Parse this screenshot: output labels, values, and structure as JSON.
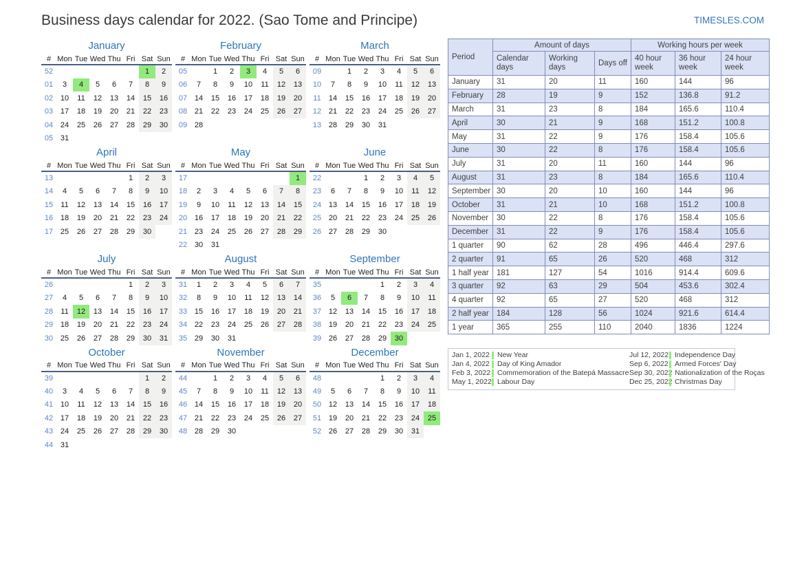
{
  "page": {
    "title": "Business days calendar for 2022. (Sao Tome and Principe)",
    "site_link": "TIMESLES.COM"
  },
  "colors": {
    "accent_blue": "#2e75b5",
    "week_number_blue": "#5b87c5",
    "holiday_green": "#92ea7e",
    "weekend_gray": "#f1f1f0",
    "table_header_bg": "#dbe2f6",
    "table_border": "#808cb0",
    "calendar_header_rule": "#4a5d85"
  },
  "calendar": {
    "day_headers": [
      "#",
      "Mon",
      "Tue",
      "Wed",
      "Thu",
      "Fri",
      "Sat",
      "Sun"
    ],
    "months": [
      {
        "name": "January",
        "holidays": [
          "1",
          "4"
        ],
        "weeks": [
          [
            "52",
            "",
            "",
            "",
            "",
            "",
            "1",
            "2"
          ],
          [
            "01",
            "3",
            "4",
            "5",
            "6",
            "7",
            "8",
            "9"
          ],
          [
            "02",
            "10",
            "11",
            "12",
            "13",
            "14",
            "15",
            "16"
          ],
          [
            "03",
            "17",
            "18",
            "19",
            "20",
            "21",
            "22",
            "23"
          ],
          [
            "04",
            "24",
            "25",
            "26",
            "27",
            "28",
            "29",
            "30"
          ],
          [
            "05",
            "31",
            "",
            "",
            "",
            "",
            "",
            ""
          ]
        ]
      },
      {
        "name": "February",
        "holidays": [
          "3"
        ],
        "weeks": [
          [
            "05",
            "",
            "1",
            "2",
            "3",
            "4",
            "5",
            "6"
          ],
          [
            "06",
            "7",
            "8",
            "9",
            "10",
            "11",
            "12",
            "13"
          ],
          [
            "07",
            "14",
            "15",
            "16",
            "17",
            "18",
            "19",
            "20"
          ],
          [
            "08",
            "21",
            "22",
            "23",
            "24",
            "25",
            "26",
            "27"
          ],
          [
            "09",
            "28",
            "",
            "",
            "",
            "",
            "",
            ""
          ]
        ]
      },
      {
        "name": "March",
        "holidays": [],
        "weeks": [
          [
            "09",
            "",
            "1",
            "2",
            "3",
            "4",
            "5",
            "6"
          ],
          [
            "10",
            "7",
            "8",
            "9",
            "10",
            "11",
            "12",
            "13"
          ],
          [
            "11",
            "14",
            "15",
            "16",
            "17",
            "18",
            "19",
            "20"
          ],
          [
            "12",
            "21",
            "22",
            "23",
            "24",
            "25",
            "26",
            "27"
          ],
          [
            "13",
            "28",
            "29",
            "30",
            "31",
            "",
            "",
            ""
          ]
        ]
      },
      {
        "name": "April",
        "holidays": [],
        "weeks": [
          [
            "13",
            "",
            "",
            "",
            "",
            "1",
            "2",
            "3"
          ],
          [
            "14",
            "4",
            "5",
            "6",
            "7",
            "8",
            "9",
            "10"
          ],
          [
            "15",
            "11",
            "12",
            "13",
            "14",
            "15",
            "16",
            "17"
          ],
          [
            "16",
            "18",
            "19",
            "20",
            "21",
            "22",
            "23",
            "24"
          ],
          [
            "17",
            "25",
            "26",
            "27",
            "28",
            "29",
            "30",
            ""
          ]
        ]
      },
      {
        "name": "May",
        "holidays": [
          "1"
        ],
        "weeks": [
          [
            "17",
            "",
            "",
            "",
            "",
            "",
            "",
            "1"
          ],
          [
            "18",
            "2",
            "3",
            "4",
            "5",
            "6",
            "7",
            "8"
          ],
          [
            "19",
            "9",
            "10",
            "11",
            "12",
            "13",
            "14",
            "15"
          ],
          [
            "20",
            "16",
            "17",
            "18",
            "19",
            "20",
            "21",
            "22"
          ],
          [
            "21",
            "23",
            "24",
            "25",
            "26",
            "27",
            "28",
            "29"
          ],
          [
            "22",
            "30",
            "31",
            "",
            "",
            "",
            "",
            ""
          ]
        ]
      },
      {
        "name": "June",
        "holidays": [],
        "weeks": [
          [
            "22",
            "",
            "",
            "1",
            "2",
            "3",
            "4",
            "5"
          ],
          [
            "23",
            "6",
            "7",
            "8",
            "9",
            "10",
            "11",
            "12"
          ],
          [
            "24",
            "13",
            "14",
            "15",
            "16",
            "17",
            "18",
            "19"
          ],
          [
            "25",
            "20",
            "21",
            "22",
            "23",
            "24",
            "25",
            "26"
          ],
          [
            "26",
            "27",
            "28",
            "29",
            "30",
            "",
            "",
            ""
          ]
        ]
      },
      {
        "name": "July",
        "holidays": [
          "12"
        ],
        "weeks": [
          [
            "26",
            "",
            "",
            "",
            "",
            "1",
            "2",
            "3"
          ],
          [
            "27",
            "4",
            "5",
            "6",
            "7",
            "8",
            "9",
            "10"
          ],
          [
            "28",
            "11",
            "12",
            "13",
            "14",
            "15",
            "16",
            "17"
          ],
          [
            "29",
            "18",
            "19",
            "20",
            "21",
            "22",
            "23",
            "24"
          ],
          [
            "30",
            "25",
            "26",
            "27",
            "28",
            "29",
            "30",
            "31"
          ]
        ]
      },
      {
        "name": "August",
        "holidays": [],
        "weeks": [
          [
            "31",
            "1",
            "2",
            "3",
            "4",
            "5",
            "6",
            "7"
          ],
          [
            "32",
            "8",
            "9",
            "10",
            "11",
            "12",
            "13",
            "14"
          ],
          [
            "33",
            "15",
            "16",
            "17",
            "18",
            "19",
            "20",
            "21"
          ],
          [
            "34",
            "22",
            "23",
            "24",
            "25",
            "26",
            "27",
            "28"
          ],
          [
            "35",
            "29",
            "30",
            "31",
            "",
            "",
            "",
            ""
          ]
        ]
      },
      {
        "name": "September",
        "holidays": [
          "6",
          "30"
        ],
        "weeks": [
          [
            "35",
            "",
            "",
            "",
            "1",
            "2",
            "3",
            "4"
          ],
          [
            "36",
            "5",
            "6",
            "7",
            "8",
            "9",
            "10",
            "11"
          ],
          [
            "37",
            "12",
            "13",
            "14",
            "15",
            "16",
            "17",
            "18"
          ],
          [
            "38",
            "19",
            "20",
            "21",
            "22",
            "23",
            "24",
            "25"
          ],
          [
            "39",
            "26",
            "27",
            "28",
            "29",
            "30",
            "",
            ""
          ]
        ]
      },
      {
        "name": "October",
        "holidays": [],
        "weeks": [
          [
            "39",
            "",
            "",
            "",
            "",
            "",
            "1",
            "2"
          ],
          [
            "40",
            "3",
            "4",
            "5",
            "6",
            "7",
            "8",
            "9"
          ],
          [
            "41",
            "10",
            "11",
            "12",
            "13",
            "14",
            "15",
            "16"
          ],
          [
            "42",
            "17",
            "18",
            "19",
            "20",
            "21",
            "22",
            "23"
          ],
          [
            "43",
            "24",
            "25",
            "26",
            "27",
            "28",
            "29",
            "30"
          ],
          [
            "44",
            "31",
            "",
            "",
            "",
            "",
            "",
            ""
          ]
        ]
      },
      {
        "name": "November",
        "holidays": [],
        "weeks": [
          [
            "44",
            "",
            "1",
            "2",
            "3",
            "4",
            "5",
            "6"
          ],
          [
            "45",
            "7",
            "8",
            "9",
            "10",
            "11",
            "12",
            "13"
          ],
          [
            "46",
            "14",
            "15",
            "16",
            "17",
            "18",
            "19",
            "20"
          ],
          [
            "47",
            "21",
            "22",
            "23",
            "24",
            "25",
            "26",
            "27"
          ],
          [
            "48",
            "28",
            "29",
            "30",
            "",
            "",
            "",
            ""
          ]
        ]
      },
      {
        "name": "December",
        "holidays": [
          "25"
        ],
        "weeks": [
          [
            "48",
            "",
            "",
            "",
            "1",
            "2",
            "3",
            "4"
          ],
          [
            "49",
            "5",
            "6",
            "7",
            "8",
            "9",
            "10",
            "11"
          ],
          [
            "50",
            "12",
            "13",
            "14",
            "15",
            "16",
            "17",
            "18"
          ],
          [
            "51",
            "19",
            "20",
            "21",
            "22",
            "23",
            "24",
            "25"
          ],
          [
            "52",
            "26",
            "27",
            "28",
            "29",
            "30",
            "31",
            ""
          ]
        ]
      }
    ]
  },
  "table": {
    "period_label": "Period",
    "group_amount": "Amount of days",
    "group_hours": "Working hours per week",
    "columns": [
      "Calendar days",
      "Working days",
      "Days off",
      "40 hour week",
      "36 hour week",
      "24 hour week"
    ],
    "rows": [
      {
        "period": "January",
        "values": [
          "31",
          "20",
          "11",
          "160",
          "144",
          "96"
        ]
      },
      {
        "period": "February",
        "values": [
          "28",
          "19",
          "9",
          "152",
          "136.8",
          "91.2"
        ]
      },
      {
        "period": "March",
        "values": [
          "31",
          "23",
          "8",
          "184",
          "165.6",
          "110.4"
        ]
      },
      {
        "period": "April",
        "values": [
          "30",
          "21",
          "9",
          "168",
          "151.2",
          "100.8"
        ]
      },
      {
        "period": "May",
        "values": [
          "31",
          "22",
          "9",
          "176",
          "158.4",
          "105.6"
        ]
      },
      {
        "period": "June",
        "values": [
          "30",
          "22",
          "8",
          "176",
          "158.4",
          "105.6"
        ]
      },
      {
        "period": "July",
        "values": [
          "31",
          "20",
          "11",
          "160",
          "144",
          "96"
        ]
      },
      {
        "period": "August",
        "values": [
          "31",
          "23",
          "8",
          "184",
          "165.6",
          "110.4"
        ]
      },
      {
        "period": "September",
        "values": [
          "30",
          "20",
          "10",
          "160",
          "144",
          "96"
        ]
      },
      {
        "period": "October",
        "values": [
          "31",
          "21",
          "10",
          "168",
          "151.2",
          "100.8"
        ]
      },
      {
        "period": "November",
        "values": [
          "30",
          "22",
          "8",
          "176",
          "158.4",
          "105.6"
        ]
      },
      {
        "period": "December",
        "values": [
          "31",
          "22",
          "9",
          "176",
          "158.4",
          "105.6"
        ]
      },
      {
        "period": "1 quarter",
        "values": [
          "90",
          "62",
          "28",
          "496",
          "446.4",
          "297.6"
        ]
      },
      {
        "period": "2 quarter",
        "values": [
          "91",
          "65",
          "26",
          "520",
          "468",
          "312"
        ]
      },
      {
        "period": "1 half year",
        "values": [
          "181",
          "127",
          "54",
          "1016",
          "914.4",
          "609.6"
        ]
      },
      {
        "period": "3 quarter",
        "values": [
          "92",
          "63",
          "29",
          "504",
          "453.6",
          "302.4"
        ]
      },
      {
        "period": "4 quarter",
        "values": [
          "92",
          "65",
          "27",
          "520",
          "468",
          "312"
        ]
      },
      {
        "period": "2 half year",
        "values": [
          "184",
          "128",
          "56",
          "1024",
          "921.6",
          "614.4"
        ]
      },
      {
        "period": "1 year",
        "values": [
          "365",
          "255",
          "110",
          "2040",
          "1836",
          "1224"
        ]
      }
    ]
  },
  "holidays_box": {
    "left": [
      {
        "date": "Jan 1, 2022",
        "name": "New Year"
      },
      {
        "date": "Jan 4, 2022",
        "name": "Day of King Amador"
      },
      {
        "date": "Feb 3, 2022",
        "name": "Commemoration of the Batepá Massacre"
      },
      {
        "date": "May 1, 2022",
        "name": "Labour Day"
      }
    ],
    "right": [
      {
        "date": "Jul 12, 2022",
        "name": "Independence Day"
      },
      {
        "date": "Sep 6, 2022",
        "name": "Armed Forces' Day"
      },
      {
        "date": "Sep 30, 2022",
        "name": "Nationalization of the Roças"
      },
      {
        "date": "Dec 25, 2022",
        "name": "Christmas Day"
      }
    ]
  }
}
